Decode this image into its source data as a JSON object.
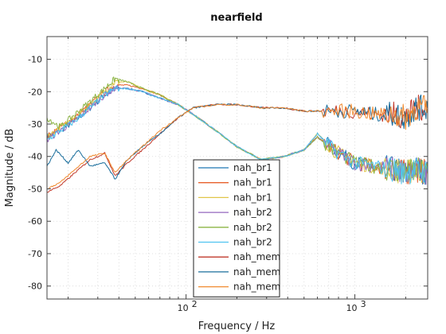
{
  "chart_data": {
    "type": "line",
    "title": "nearfield",
    "xlabel": "Frequency / Hz",
    "ylabel": "Magnitude / dB",
    "xscale": "log",
    "xlim": [
      15,
      2700
    ],
    "ylim": [
      -84,
      -3
    ],
    "xticks": [
      {
        "value": 100,
        "label": "10",
        "exp": "2"
      },
      {
        "value": 1000,
        "label": "10",
        "exp": "3"
      }
    ],
    "yticks": [
      -80,
      -70,
      -60,
      -50,
      -40,
      -30,
      -20,
      -10
    ],
    "grid": true,
    "legend": {
      "placement": "center-bottom"
    },
    "series": [
      {
        "name": "nah_br1",
        "color": "#1f77b4",
        "points": [
          [
            15,
            -34
          ],
          [
            18,
            -32
          ],
          [
            22,
            -29
          ],
          [
            27,
            -25
          ],
          [
            33,
            -21
          ],
          [
            38,
            -19
          ],
          [
            45,
            -19
          ],
          [
            55,
            -20
          ],
          [
            70,
            -22
          ],
          [
            90,
            -24
          ],
          [
            110,
            -27
          ],
          [
            150,
            -32
          ],
          [
            200,
            -37
          ],
          [
            280,
            -41
          ],
          [
            380,
            -40
          ],
          [
            500,
            -38
          ],
          [
            600,
            -33
          ],
          [
            750,
            -38
          ],
          [
            1000,
            -42
          ],
          [
            1300,
            -43
          ],
          [
            1700,
            -44
          ],
          [
            2000,
            -45
          ],
          [
            2300,
            -44
          ],
          [
            2700,
            -45
          ]
        ]
      },
      {
        "name": "nah_br1",
        "color": "#e8602c",
        "points": [
          [
            15,
            -34
          ],
          [
            18,
            -31
          ],
          [
            22,
            -28
          ],
          [
            27,
            -24
          ],
          [
            33,
            -20
          ],
          [
            38,
            -18
          ],
          [
            45,
            -18
          ],
          [
            55,
            -19
          ],
          [
            70,
            -21
          ],
          [
            90,
            -24
          ],
          [
            110,
            -27
          ],
          [
            150,
            -32
          ],
          [
            200,
            -37
          ],
          [
            280,
            -41
          ],
          [
            380,
            -40
          ],
          [
            500,
            -38
          ],
          [
            600,
            -34
          ],
          [
            750,
            -38
          ],
          [
            1000,
            -42
          ],
          [
            1300,
            -43
          ],
          [
            1700,
            -44
          ],
          [
            2000,
            -45
          ],
          [
            2300,
            -44
          ],
          [
            2700,
            -45
          ]
        ]
      },
      {
        "name": "nah_br1",
        "color": "#e0c648",
        "points": [
          [
            15,
            -34
          ],
          [
            18,
            -31
          ],
          [
            22,
            -28
          ],
          [
            27,
            -24
          ],
          [
            33,
            -20
          ],
          [
            38,
            -17
          ],
          [
            45,
            -17
          ],
          [
            55,
            -19
          ],
          [
            70,
            -21
          ],
          [
            90,
            -24
          ],
          [
            110,
            -27
          ],
          [
            150,
            -32
          ],
          [
            200,
            -37
          ],
          [
            280,
            -41
          ],
          [
            380,
            -40
          ],
          [
            500,
            -38
          ],
          [
            600,
            -33
          ],
          [
            750,
            -38
          ],
          [
            1000,
            -42
          ],
          [
            1300,
            -43
          ],
          [
            1700,
            -44
          ],
          [
            2000,
            -45
          ],
          [
            2300,
            -44
          ],
          [
            2700,
            -45
          ]
        ]
      },
      {
        "name": "nah_br2",
        "color": "#9467bd",
        "points": [
          [
            15,
            -35
          ],
          [
            18,
            -32
          ],
          [
            22,
            -29
          ],
          [
            27,
            -25
          ],
          [
            33,
            -21
          ],
          [
            38,
            -19
          ],
          [
            45,
            -19
          ],
          [
            55,
            -20
          ],
          [
            70,
            -22
          ],
          [
            90,
            -24
          ],
          [
            110,
            -27
          ],
          [
            150,
            -32
          ],
          [
            200,
            -37
          ],
          [
            280,
            -41
          ],
          [
            380,
            -40
          ],
          [
            500,
            -38
          ],
          [
            600,
            -34
          ],
          [
            750,
            -38
          ],
          [
            1000,
            -42
          ],
          [
            1300,
            -43
          ],
          [
            1700,
            -44
          ],
          [
            2000,
            -45
          ],
          [
            2300,
            -44
          ],
          [
            2700,
            -45
          ]
        ]
      },
      {
        "name": "nah_br2",
        "color": "#8cb445",
        "points": [
          [
            15,
            -28
          ],
          [
            18,
            -31
          ],
          [
            22,
            -27
          ],
          [
            27,
            -23
          ],
          [
            33,
            -19
          ],
          [
            38,
            -16
          ],
          [
            45,
            -17
          ],
          [
            55,
            -19
          ],
          [
            70,
            -21
          ],
          [
            90,
            -24
          ],
          [
            110,
            -27
          ],
          [
            150,
            -32
          ],
          [
            200,
            -37
          ],
          [
            280,
            -41
          ],
          [
            380,
            -40
          ],
          [
            500,
            -38
          ],
          [
            600,
            -34
          ],
          [
            750,
            -38
          ],
          [
            1000,
            -42
          ],
          [
            1300,
            -43
          ],
          [
            1700,
            -44
          ],
          [
            2000,
            -45
          ],
          [
            2300,
            -44
          ],
          [
            2700,
            -45
          ]
        ]
      },
      {
        "name": "nah_br2",
        "color": "#4fc3f0",
        "points": [
          [
            15,
            -35
          ],
          [
            18,
            -32
          ],
          [
            22,
            -29
          ],
          [
            27,
            -25
          ],
          [
            33,
            -21
          ],
          [
            38,
            -19
          ],
          [
            45,
            -19
          ],
          [
            55,
            -20
          ],
          [
            70,
            -22
          ],
          [
            90,
            -24
          ],
          [
            110,
            -27
          ],
          [
            150,
            -32
          ],
          [
            200,
            -37
          ],
          [
            280,
            -41
          ],
          [
            380,
            -40
          ],
          [
            500,
            -38
          ],
          [
            600,
            -33
          ],
          [
            750,
            -38
          ],
          [
            1000,
            -42
          ],
          [
            1300,
            -43
          ],
          [
            1700,
            -44
          ],
          [
            2000,
            -45
          ],
          [
            2300,
            -44
          ],
          [
            2700,
            -45
          ]
        ]
      },
      {
        "name": "nah_mem",
        "color": "#c0392b",
        "points": [
          [
            15,
            -51
          ],
          [
            18,
            -49
          ],
          [
            22,
            -45
          ],
          [
            27,
            -41
          ],
          [
            33,
            -39
          ],
          [
            38,
            -46
          ],
          [
            45,
            -42
          ],
          [
            55,
            -38
          ],
          [
            70,
            -33
          ],
          [
            90,
            -28
          ],
          [
            110,
            -25
          ],
          [
            150,
            -24
          ],
          [
            200,
            -24
          ],
          [
            280,
            -25
          ],
          [
            380,
            -25
          ],
          [
            500,
            -26
          ],
          [
            700,
            -26
          ],
          [
            1000,
            -26
          ],
          [
            1300,
            -27
          ],
          [
            1700,
            -27
          ],
          [
            2000,
            -28
          ],
          [
            2300,
            -25
          ],
          [
            2700,
            -25
          ]
        ]
      },
      {
        "name": "nah_mem",
        "color": "#1a6e9c",
        "points": [
          [
            15,
            -43
          ],
          [
            17,
            -38
          ],
          [
            20,
            -42
          ],
          [
            23,
            -38
          ],
          [
            27,
            -43
          ],
          [
            33,
            -42
          ],
          [
            38,
            -47
          ],
          [
            45,
            -41
          ],
          [
            55,
            -37
          ],
          [
            70,
            -33
          ],
          [
            90,
            -28
          ],
          [
            110,
            -25
          ],
          [
            150,
            -24
          ],
          [
            200,
            -24
          ],
          [
            280,
            -25
          ],
          [
            380,
            -25
          ],
          [
            500,
            -26
          ],
          [
            700,
            -26
          ],
          [
            1000,
            -26
          ],
          [
            1300,
            -27
          ],
          [
            1700,
            -27
          ],
          [
            2000,
            -28
          ],
          [
            2300,
            -25
          ],
          [
            2700,
            -25
          ]
        ]
      },
      {
        "name": "nah_mem",
        "color": "#f08a30",
        "points": [
          [
            15,
            -50
          ],
          [
            18,
            -48
          ],
          [
            22,
            -44
          ],
          [
            27,
            -40
          ],
          [
            33,
            -39
          ],
          [
            38,
            -45
          ],
          [
            45,
            -41
          ],
          [
            55,
            -37
          ],
          [
            70,
            -32
          ],
          [
            90,
            -28
          ],
          [
            110,
            -25
          ],
          [
            150,
            -24
          ],
          [
            200,
            -24
          ],
          [
            280,
            -25
          ],
          [
            380,
            -25
          ],
          [
            500,
            -26
          ],
          [
            700,
            -26
          ],
          [
            1000,
            -26
          ],
          [
            1300,
            -27
          ],
          [
            1700,
            -27
          ],
          [
            2000,
            -28
          ],
          [
            2300,
            -25
          ],
          [
            2700,
            -25
          ]
        ]
      }
    ]
  }
}
